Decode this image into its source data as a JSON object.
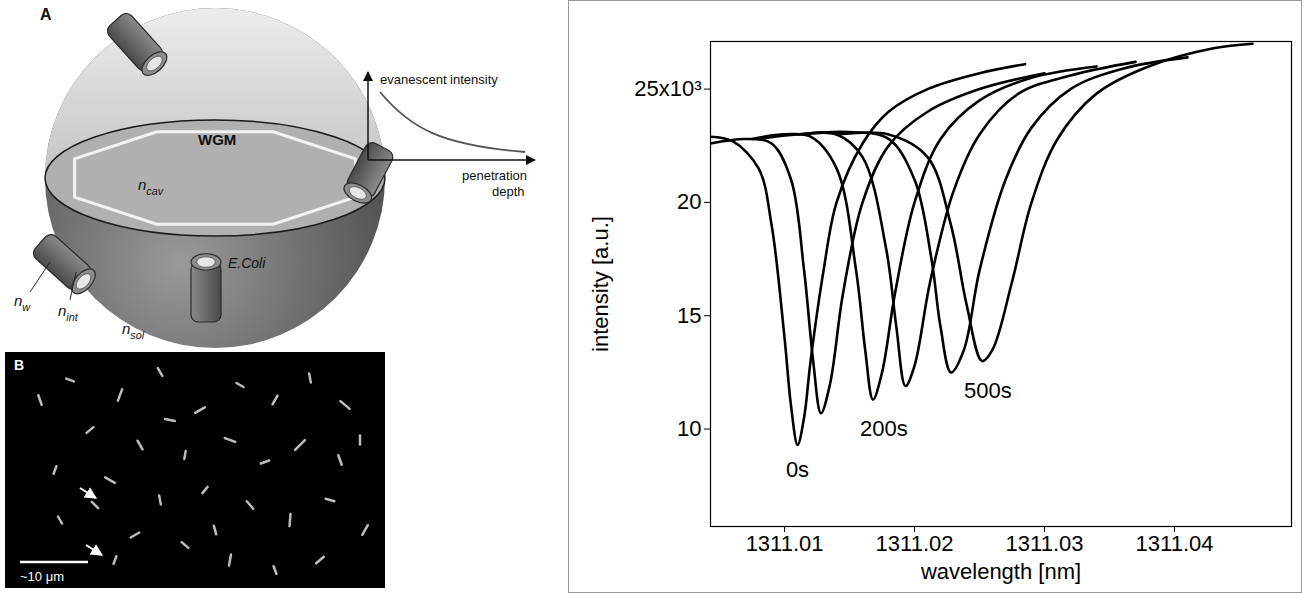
{
  "figure": {
    "panel_a": {
      "letter": "A",
      "wgm": "WGM",
      "n_cav": {
        "text": "n",
        "sub": "cav"
      },
      "n_w": {
        "text": "n",
        "sub": "w"
      },
      "n_int": {
        "text": "n",
        "sub": "int"
      },
      "n_sol": {
        "text": "n",
        "sub": "sol"
      },
      "bacterium": "E.Coli",
      "evanescent_axis_y": "evanescent intensity",
      "evanescent_axis_x": "penetration depth"
    },
    "panel_b": {
      "letter": "B",
      "scale_bar": "~10 μm"
    }
  },
  "chart_data": {
    "type": "line",
    "x_label": "wavelength [nm]",
    "y_label": "intensity [a.u.]",
    "xlim": [
      1311.0043,
      1311.049
    ],
    "xticks": [
      1311.01,
      1311.02,
      1311.03,
      1311.04
    ],
    "ylim": [
      5.7,
      27.1
    ],
    "yticks": [
      10,
      15,
      20,
      {
        "value": 25,
        "label": "25x10³"
      }
    ],
    "color": "#000000",
    "series": [
      {
        "x": [
          1311.0043,
          1311.006,
          1311.008,
          1311.009,
          1311.01,
          1311.0105,
          1311.011,
          1311.0115,
          1311.012,
          1311.013,
          1311.014,
          1311.016,
          1311.018,
          1311.021,
          1311.025,
          1311.0285
        ],
        "values": [
          22.9,
          22.7,
          21.5,
          19.0,
          14.0,
          11.0,
          9.3,
          10.5,
          13.0,
          17.0,
          20.0,
          22.6,
          24.0,
          25.0,
          25.7,
          26.1
        ]
      },
      {
        "x": [
          1311.0043,
          1311.007,
          1311.009,
          1311.0105,
          1311.0115,
          1311.0122,
          1311.0128,
          1311.0135,
          1311.0145,
          1311.016,
          1311.018,
          1311.021,
          1311.025,
          1311.03
        ],
        "values": [
          22.6,
          22.8,
          22.6,
          21.0,
          17.0,
          13.0,
          10.7,
          12.0,
          16.0,
          20.0,
          22.5,
          24.0,
          25.0,
          25.7
        ]
      },
      {
        "x": [
          1311.0075,
          1311.01,
          1311.012,
          1311.014,
          1311.0155,
          1311.0162,
          1311.0168,
          1311.0175,
          1311.0185,
          1311.02,
          1311.022,
          1311.025,
          1311.029,
          1311.034
        ],
        "values": [
          22.8,
          23.0,
          22.9,
          21.5,
          17.0,
          13.5,
          11.3,
          12.5,
          16.0,
          20.0,
          22.8,
          24.5,
          25.5,
          26.0
        ]
      },
      {
        "x": [
          1311.008,
          1311.011,
          1311.014,
          1311.016,
          1311.0178,
          1311.0186,
          1311.0193,
          1311.02,
          1311.0212,
          1311.023,
          1311.025,
          1311.028,
          1311.032,
          1311.037
        ],
        "values": [
          22.8,
          23.0,
          23.0,
          22.0,
          18.0,
          14.5,
          11.9,
          12.8,
          16.5,
          20.5,
          23.0,
          24.8,
          25.6,
          26.2
        ]
      },
      {
        "x": [
          1311.011,
          1311.015,
          1311.018,
          1311.02,
          1311.0213,
          1311.022,
          1311.0228,
          1311.0238,
          1311.025,
          1311.027,
          1311.029,
          1311.032,
          1311.036,
          1311.041
        ],
        "values": [
          23.0,
          23.1,
          22.8,
          21.0,
          17.5,
          14.5,
          12.5,
          13.5,
          17.0,
          21.0,
          23.3,
          25.0,
          25.9,
          26.4
        ]
      },
      {
        "x": [
          1311.014,
          1311.018,
          1311.021,
          1311.0228,
          1311.024,
          1311.0252,
          1311.026,
          1311.0275,
          1311.029,
          1311.031,
          1311.034,
          1311.038,
          1311.043,
          1311.046
        ],
        "values": [
          23.0,
          23.0,
          22.0,
          19.0,
          15.5,
          13.0,
          13.5,
          16.5,
          20.0,
          22.8,
          24.8,
          26.0,
          26.8,
          27.0
        ]
      }
    ],
    "annotations": [
      {
        "text": "0s",
        "x": 1311.0101,
        "y": 8.2
      },
      {
        "text": "200s",
        "x": 1311.0158,
        "y": 10.0
      },
      {
        "text": "500s",
        "x": 1311.0238,
        "y": 11.7
      }
    ]
  }
}
